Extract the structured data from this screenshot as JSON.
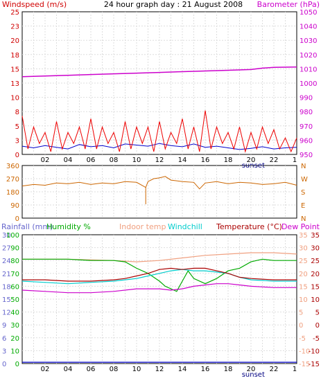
{
  "title": "24 hour graph day : 21 August 2008",
  "chart_data": [
    {
      "type": "line",
      "name": "wind-barometer-panel",
      "left_axis": {
        "label": "Windspeed (m/s)",
        "range": [
          0,
          26
        ],
        "ticks": [
          "0",
          "3",
          "5",
          "8",
          "10",
          "13",
          "15",
          "18",
          "20",
          "23",
          "25"
        ],
        "tick_values": [
          0,
          2.6,
          5.2,
          7.8,
          10.4,
          13,
          15.6,
          18.2,
          20.8,
          23.4,
          26
        ],
        "color": "#d00000"
      },
      "right_axis": {
        "label": "Barometer (hPa)",
        "range": [
          950,
          1050
        ],
        "ticks": [
          "950",
          "960",
          "970",
          "980",
          "990",
          "1000",
          "1010",
          "1020",
          "1030",
          "1040",
          "1050"
        ],
        "color": "#cc00cc"
      },
      "x_ticks": [
        "02",
        "04",
        "06",
        "08",
        "10",
        "12",
        "14",
        "16",
        "18",
        "20",
        "22"
      ],
      "x_range": [
        0,
        24
      ],
      "sunset_label": "sunset",
      "sunset_hour": 20.2,
      "series": [
        {
          "axis": "right",
          "color": "#cc00cc",
          "x": [
            0,
            2,
            4,
            6,
            8,
            10,
            12,
            14,
            16,
            18,
            20,
            21,
            22,
            24
          ],
          "y": [
            1004.5,
            1005,
            1005.5,
            1006,
            1006.5,
            1007,
            1007.5,
            1008,
            1008.5,
            1009,
            1009.5,
            1010.5,
            1011,
            1011.3
          ]
        },
        {
          "axis": "left",
          "color": "#0000cc",
          "x": [
            0,
            1,
            2,
            3,
            4,
            5,
            6,
            7,
            8,
            9,
            10,
            11,
            12,
            13,
            14,
            15,
            16,
            17,
            18,
            19,
            20,
            21,
            22,
            23,
            24
          ],
          "y": [
            1.5,
            1.2,
            1.6,
            1.3,
            1.0,
            1.8,
            1.4,
            1.6,
            1.2,
            1.9,
            1.7,
            1.5,
            2.0,
            1.6,
            1.4,
            1.9,
            1.3,
            1.5,
            1.2,
            0.9,
            1.1,
            1.4,
            1.0,
            1.2,
            1.3
          ]
        },
        {
          "axis": "left",
          "color": "#ee0000",
          "x": [
            0,
            0.5,
            1,
            1.5,
            2,
            2.5,
            3,
            3.5,
            4,
            4.5,
            5,
            5.5,
            6,
            6.5,
            7,
            7.5,
            8,
            8.5,
            9,
            9.5,
            10,
            10.5,
            11,
            11.5,
            12,
            12.5,
            13,
            13.5,
            14,
            14.5,
            15,
            15.5,
            16,
            16.5,
            17,
            17.5,
            18,
            18.5,
            19,
            19.5,
            20,
            20.5,
            21,
            21.5,
            22,
            22.5,
            23,
            23.5,
            24
          ],
          "y": [
            7,
            1,
            5,
            2,
            4,
            0.5,
            6,
            1,
            4,
            2,
            5,
            1,
            6.5,
            1,
            5,
            2,
            4,
            0.5,
            6,
            1,
            5,
            2,
            5,
            0.5,
            6,
            1,
            4,
            2,
            6.5,
            1,
            5,
            0.5,
            8,
            1,
            5,
            2,
            4,
            1,
            5,
            0.5,
            4,
            1,
            5,
            2,
            4.5,
            1,
            3,
            0.5,
            3
          ]
        }
      ]
    },
    {
      "type": "line",
      "name": "wind-direction-panel",
      "left_axis": {
        "range": [
          0,
          360
        ],
        "ticks": [
          "0",
          "90",
          "180",
          "270",
          "360"
        ]
      },
      "right_axis": {
        "ticks": [
          "N",
          "E",
          "S",
          "W",
          "N"
        ]
      },
      "x_range": [
        0,
        24
      ],
      "series": [
        {
          "color": "#cc6600",
          "x": [
            0,
            1,
            2,
            3,
            4,
            5,
            6,
            7,
            8,
            9,
            10,
            10.8,
            11,
            11.5,
            12,
            12.5,
            13,
            14,
            15,
            15.5,
            16,
            17,
            18,
            19,
            20,
            21,
            22,
            23,
            24
          ],
          "y": [
            220,
            230,
            225,
            240,
            235,
            245,
            230,
            240,
            235,
            250,
            245,
            210,
            250,
            270,
            275,
            285,
            260,
            250,
            245,
            200,
            240,
            250,
            235,
            245,
            240,
            230,
            235,
            245,
            225
          ]
        },
        {
          "color": "#cc6600",
          "x": [
            10.8,
            10.8
          ],
          "y": [
            210,
            95
          ]
        }
      ]
    },
    {
      "type": "line",
      "name": "rain-humidity-temperature-panel",
      "legend": [
        "Rainfall (mm)",
        "Humidity %",
        "Indoor temp",
        "Windchill",
        "Temperature (°C)",
        "Dew Point"
      ],
      "legend_colors": [
        "#6666cc",
        "#00aa00",
        "#f0a080",
        "#00cccc",
        "#aa0000",
        "#cc00cc"
      ],
      "left_axis_1": {
        "label": "Rainfall (mm)",
        "ticks": [
          "0",
          "3",
          "6",
          "9",
          "12",
          "15",
          "18",
          "21",
          "24",
          "27",
          "30"
        ],
        "range": [
          0,
          30
        ],
        "color": "#6666cc"
      },
      "left_axis_2": {
        "label": "Humidity %",
        "ticks": [
          "0",
          "10",
          "20",
          "30",
          "40",
          "50",
          "60",
          "70",
          "80",
          "90",
          "100"
        ],
        "range": [
          0,
          100
        ],
        "color": "#00aa00"
      },
      "right_axis_1": {
        "label": "Indoor temp",
        "ticks": [
          "-15",
          "-10",
          "-5",
          "0",
          "5",
          "10",
          "15",
          "20",
          "25",
          "30",
          "35"
        ],
        "range": [
          -15,
          35
        ],
        "color": "#f0a080"
      },
      "right_axis_2": {
        "label": "Temperature (°C)",
        "ticks": [
          "-15",
          "-10",
          "-5",
          "0",
          "5",
          "10",
          "15",
          "20",
          "25",
          "30",
          "35"
        ],
        "range": [
          -15,
          35
        ],
        "color": "#aa0000"
      },
      "x_ticks": [
        "02",
        "04",
        "06",
        "08",
        "10",
        "12",
        "14",
        "16",
        "18",
        "20",
        "22"
      ],
      "x_range": [
        0,
        24
      ],
      "sunset_label": "sunset",
      "sunset_hour": 20.2,
      "series": [
        {
          "color": "#f0a080",
          "x": [
            0,
            4,
            8,
            10,
            12,
            14,
            16,
            18,
            20,
            22,
            24
          ],
          "y": [
            25.5,
            25.5,
            25,
            24.5,
            25,
            26,
            27,
            27.5,
            28,
            28,
            27.5
          ]
        },
        {
          "color": "#00aa00",
          "x": [
            0,
            2,
            4,
            6,
            8,
            9,
            10,
            11,
            12,
            12.5,
            13,
            13.5,
            14,
            14.5,
            15,
            16,
            17,
            18,
            19,
            20,
            21,
            22,
            24
          ],
          "y": [
            25.5,
            25.5,
            25.5,
            25,
            25,
            24.5,
            22,
            20,
            17,
            15,
            14,
            13,
            17,
            21,
            18,
            16,
            18,
            21,
            22,
            24.5,
            25.5,
            25,
            25
          ]
        },
        {
          "color": "#00cccc",
          "x": [
            0,
            2,
            4,
            6,
            8,
            9,
            10,
            11,
            12,
            13,
            14,
            15,
            16,
            17,
            18,
            19,
            20,
            22,
            24
          ],
          "y": [
            17,
            16.5,
            16,
            16.5,
            17,
            17.5,
            18,
            19,
            20,
            21,
            21.5,
            21,
            21,
            20.5,
            20,
            18.5,
            17.5,
            17,
            17
          ]
        },
        {
          "color": "#aa0000",
          "x": [
            0,
            2,
            4,
            6,
            8,
            9,
            10,
            11,
            12,
            13,
            14,
            15,
            16,
            17,
            18,
            19,
            20,
            22,
            24
          ],
          "y": [
            17.5,
            17.5,
            17,
            17,
            17.5,
            18,
            19,
            20,
            21.5,
            22,
            21.5,
            22,
            22,
            21,
            20,
            18.5,
            18,
            17.5,
            17.5
          ]
        },
        {
          "color": "#cc00cc",
          "x": [
            0,
            2,
            4,
            6,
            8,
            10,
            12,
            13,
            14,
            15,
            16,
            17,
            18,
            19,
            20,
            22,
            24
          ],
          "y": [
            13.5,
            13,
            12.5,
            12.5,
            13,
            14,
            14,
            13.5,
            14,
            15,
            15.5,
            16,
            16,
            15.5,
            15,
            14.5,
            14.5
          ]
        },
        {
          "color": "#0000cc",
          "x": [
            0,
            24
          ],
          "y": [
            0.3,
            0.3
          ],
          "axis": "rain"
        }
      ]
    }
  ]
}
